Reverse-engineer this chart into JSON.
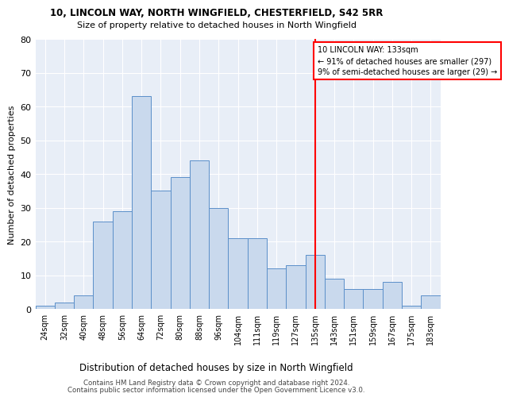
{
  "title1": "10, LINCOLN WAY, NORTH WINGFIELD, CHESTERFIELD, S42 5RR",
  "title2": "Size of property relative to detached houses in North Wingfield",
  "xlabel": "Distribution of detached houses by size in North Wingfield",
  "ylabel": "Number of detached properties",
  "footer1": "Contains HM Land Registry data © Crown copyright and database right 2024.",
  "footer2": "Contains public sector information licensed under the Open Government Licence v3.0.",
  "bar_color": "#c9d9ed",
  "bar_edge_color": "#5b8fc9",
  "background_color": "#e8eef7",
  "annotation_line1": "10 LINCOLN WAY: 133sqm",
  "annotation_line2": "← 91% of detached houses are smaller (297)",
  "annotation_line3": "9% of semi-detached houses are larger (29) →",
  "vline_x": 135,
  "categories": [
    "24sqm",
    "32sqm",
    "40sqm",
    "48sqm",
    "56sqm",
    "64sqm",
    "72sqm",
    "80sqm",
    "88sqm",
    "96sqm",
    "104sqm",
    "111sqm",
    "119sqm",
    "127sqm",
    "135sqm",
    "143sqm",
    "151sqm",
    "159sqm",
    "167sqm",
    "175sqm",
    "183sqm"
  ],
  "bar_heights": [
    1,
    2,
    4,
    26,
    29,
    63,
    35,
    39,
    44,
    30,
    21,
    21,
    12,
    13,
    16,
    9,
    6,
    6,
    8,
    1,
    4
  ],
  "ylim": [
    0,
    80
  ],
  "yticks": [
    0,
    10,
    20,
    30,
    40,
    50,
    60,
    70,
    80
  ]
}
